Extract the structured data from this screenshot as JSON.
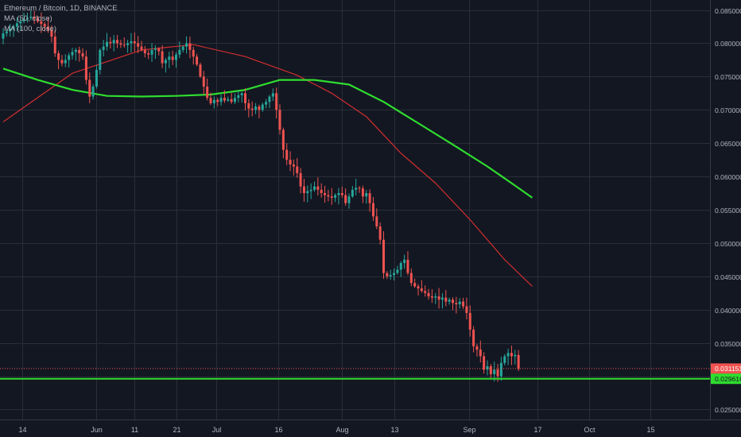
{
  "legend": {
    "symbol": "Ethereum / Bitcoin, 1D, BINANCE",
    "ma50": "MA (50, close)",
    "ma100": "MA (100, close)"
  },
  "colors": {
    "background": "#131722",
    "grid": "#2a2e39",
    "up": "#26a69a",
    "down": "#ef5350",
    "ma50": "#d32f2f",
    "ma100": "#2fdd2f",
    "axis_text": "#b2b5be"
  },
  "chart_data": {
    "type": "candlestick",
    "title": "Ethereum / Bitcoin, 1D, BINANCE",
    "x_tick_labels": [
      "14",
      "Jun",
      "11",
      "21",
      "Jul",
      "16",
      "Aug",
      "13",
      "Sep",
      "17",
      "Oct",
      "15"
    ],
    "y_tick_labels": [
      "0.025000",
      "0.030000",
      "0.035000",
      "0.040000",
      "0.045000",
      "0.050000",
      "0.055000",
      "0.060000",
      "0.065000",
      "0.070000",
      "0.075000",
      "0.080000",
      "0.085000"
    ],
    "y_range": [
      0.0235,
      0.0865
    ],
    "grid": true,
    "series": [
      {
        "name": "Ethereum / Bitcoin",
        "kind": "candles",
        "close": [
          0.0815,
          0.0818,
          0.0822,
          0.0825,
          0.083,
          0.0833,
          0.0836,
          0.0838,
          0.084,
          0.0837,
          0.0833,
          0.0829,
          0.0825,
          0.082,
          0.081,
          0.0785,
          0.0775,
          0.077,
          0.0775,
          0.0782,
          0.0787,
          0.079,
          0.0785,
          0.078,
          0.0745,
          0.072,
          0.0735,
          0.076,
          0.079,
          0.0795,
          0.0802,
          0.08,
          0.0805,
          0.08,
          0.0798,
          0.0797,
          0.08,
          0.0803,
          0.08,
          0.0795,
          0.079,
          0.0785,
          0.0783,
          0.079,
          0.0792,
          0.0788,
          0.077,
          0.0775,
          0.078,
          0.0775,
          0.0783,
          0.079,
          0.0795,
          0.08,
          0.079,
          0.078,
          0.0768,
          0.075,
          0.0735,
          0.0718,
          0.071,
          0.0715,
          0.0712,
          0.0718,
          0.0714,
          0.0716,
          0.0712,
          0.0718,
          0.0722,
          0.0725,
          0.071,
          0.0702,
          0.07,
          0.0705,
          0.07,
          0.0708,
          0.0712,
          0.072,
          0.0725,
          0.07,
          0.067,
          0.064,
          0.0625,
          0.0618,
          0.0615,
          0.0605,
          0.0585,
          0.0575,
          0.0578,
          0.058,
          0.0585,
          0.058,
          0.0575,
          0.0572,
          0.057,
          0.0568,
          0.0572,
          0.0575,
          0.0572,
          0.056,
          0.057,
          0.058,
          0.0583,
          0.0582,
          0.057,
          0.0575,
          0.056,
          0.054,
          0.0525,
          0.0505,
          0.0455,
          0.045,
          0.0452,
          0.0455,
          0.046,
          0.047,
          0.0475,
          0.0455,
          0.044,
          0.0435,
          0.0432,
          0.0428,
          0.0425,
          0.042,
          0.0418,
          0.042,
          0.0415,
          0.0418,
          0.0412,
          0.0415,
          0.041,
          0.0408,
          0.0412,
          0.0405,
          0.0395,
          0.037,
          0.0345,
          0.034,
          0.033,
          0.031,
          0.0315,
          0.0303,
          0.031,
          0.03,
          0.032,
          0.033,
          0.0335,
          0.033,
          0.0332,
          0.0311
        ]
      },
      {
        "name": "MA (50, close)",
        "kind": "line",
        "points": [
          {
            "bar": 0,
            "value": 0.0682
          },
          {
            "bar": 20,
            "value": 0.0755
          },
          {
            "bar": 40,
            "value": 0.079
          },
          {
            "bar": 55,
            "value": 0.0798
          },
          {
            "bar": 70,
            "value": 0.078
          },
          {
            "bar": 85,
            "value": 0.0752
          },
          {
            "bar": 95,
            "value": 0.0725
          },
          {
            "bar": 105,
            "value": 0.069
          },
          {
            "bar": 115,
            "value": 0.0635
          },
          {
            "bar": 125,
            "value": 0.059
          },
          {
            "bar": 135,
            "value": 0.0535
          },
          {
            "bar": 145,
            "value": 0.0475
          },
          {
            "bar": 153,
            "value": 0.0435
          }
        ]
      },
      {
        "name": "MA (100, close)",
        "kind": "line",
        "points": [
          {
            "bar": 0,
            "value": 0.0762
          },
          {
            "bar": 10,
            "value": 0.0745
          },
          {
            "bar": 20,
            "value": 0.073
          },
          {
            "bar": 30,
            "value": 0.0721
          },
          {
            "bar": 40,
            "value": 0.072
          },
          {
            "bar": 50,
            "value": 0.0721
          },
          {
            "bar": 60,
            "value": 0.0723
          },
          {
            "bar": 70,
            "value": 0.073
          },
          {
            "bar": 80,
            "value": 0.0745
          },
          {
            "bar": 90,
            "value": 0.0745
          },
          {
            "bar": 100,
            "value": 0.0738
          },
          {
            "bar": 110,
            "value": 0.0712
          },
          {
            "bar": 120,
            "value": 0.068
          },
          {
            "bar": 130,
            "value": 0.0648
          },
          {
            "bar": 140,
            "value": 0.0615
          },
          {
            "bar": 147,
            "value": 0.059
          },
          {
            "bar": 153,
            "value": 0.0568
          }
        ]
      }
    ],
    "price_lines": [
      {
        "value": 0.031151,
        "label": "0.031151",
        "style": "dotted",
        "color": "#ef5350"
      },
      {
        "value": 0.029616,
        "label": "0.029616",
        "style": "solid",
        "color": "#2fdd2f"
      }
    ]
  }
}
